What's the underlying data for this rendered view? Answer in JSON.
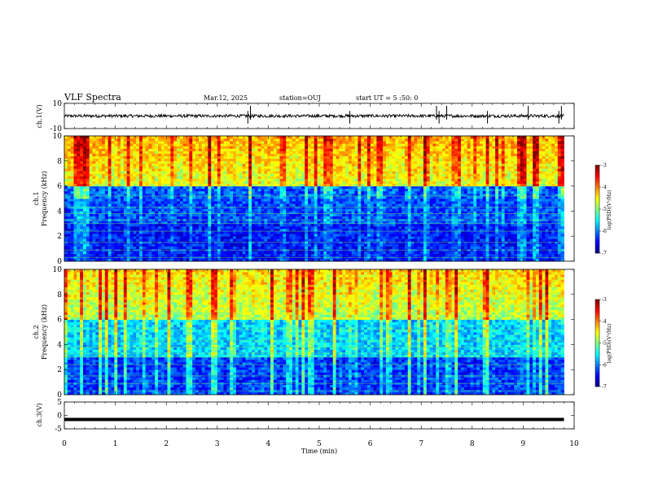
{
  "header": {
    "title": "VLF Spectra",
    "date": "Mar.12, 2025",
    "station": "station=OUJ",
    "start": "start UT = 5 :50: 0"
  },
  "chart_data": [
    {
      "type": "line",
      "name": "ch1-waveform",
      "ylabel": "ch.1(V)",
      "ylim": [
        -10,
        10
      ],
      "yticks": [
        "10",
        "-10"
      ],
      "xlim": [
        0,
        10
      ],
      "baseline": 0,
      "spike_times_min": [
        3.6,
        3.65,
        5.6,
        7.3,
        7.35,
        7.5,
        8.3,
        9.1,
        9.7,
        9.75
      ]
    },
    {
      "type": "heatmap",
      "name": "ch1-spectrogram",
      "ylabel": [
        "ch.1",
        "Frequency (kHz)"
      ],
      "ylim": [
        0,
        10
      ],
      "yticks": [
        "0",
        "2",
        "4",
        "6",
        "8",
        "10"
      ],
      "xlim": [
        0,
        9.8
      ],
      "colorbar": {
        "label": "log(PSD)(V²/Hz)",
        "range": [
          -7,
          -3
        ],
        "ticks": [
          "-3",
          "-4",
          "-5",
          "-6",
          "-7"
        ]
      },
      "description_levels": {
        "low_band_0_3kHz": -6.5,
        "mid_band_3_6kHz": -6.3,
        "high_band_6_10kHz": -4.8
      }
    },
    {
      "type": "heatmap",
      "name": "ch2-spectrogram",
      "ylabel": [
        "ch.2",
        "Frequency (kHz)"
      ],
      "ylim": [
        0,
        10
      ],
      "yticks": [
        "0",
        "2",
        "4",
        "6",
        "8",
        "10"
      ],
      "xlim": [
        0,
        9.8
      ],
      "colorbar": {
        "label": "log(PSD)(V²/Hz)",
        "range": [
          -7,
          -3
        ],
        "ticks": [
          "-3",
          "-4",
          "-5",
          "-6",
          "-7"
        ]
      },
      "description_levels": {
        "low_band_0_3kHz": -6.4,
        "mid_band_3_6kHz": -5.8,
        "high_band_6_10kHz": -5.0
      }
    },
    {
      "type": "line",
      "name": "ch3-waveform",
      "ylabel": "ch.3(V)",
      "ylim": [
        -5,
        5
      ],
      "yticks": [
        "5",
        "0",
        "-5"
      ],
      "xlim": [
        0,
        10
      ],
      "level": -1.5
    }
  ],
  "xaxis": {
    "label": "Time (min)",
    "ticks": [
      "0",
      "1",
      "2",
      "3",
      "4",
      "5",
      "6",
      "7",
      "8",
      "9",
      "10"
    ]
  },
  "colors": {
    "line": "#000000",
    "background": "#ffffff"
  }
}
